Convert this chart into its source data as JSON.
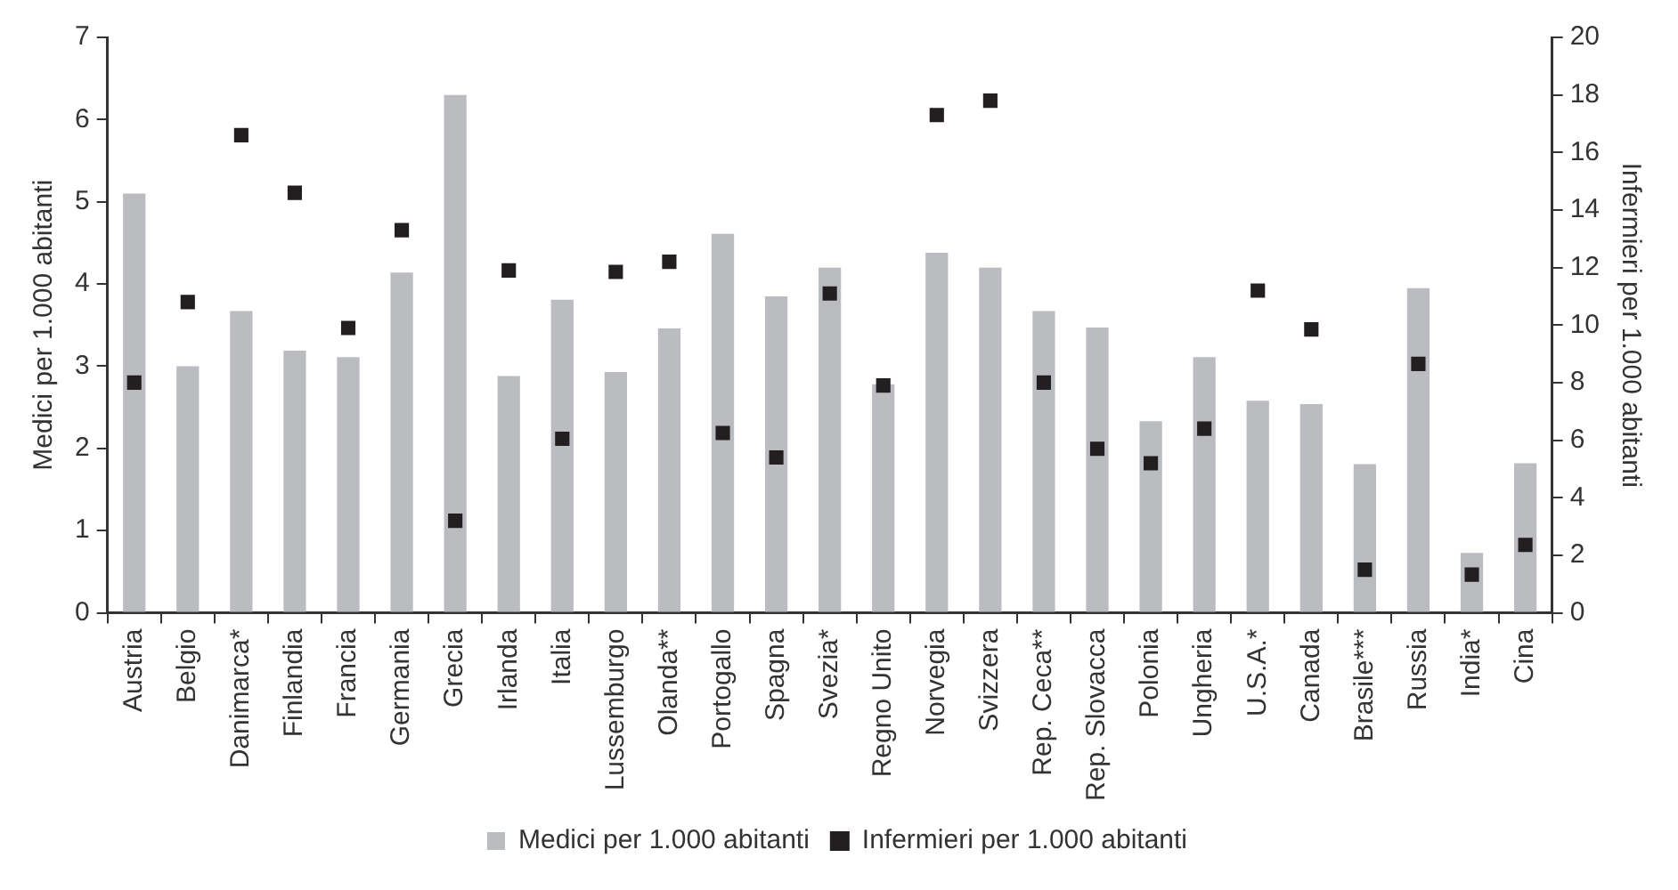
{
  "chart_data": {
    "type": "bar",
    "ylabel": "Medici per 1.000 abitanti",
    "y2label": "Infermieri per 1.000 abitanti",
    "categories": [
      "Austria",
      "Belgio",
      "Danimarca*",
      "Finlandia",
      "Francia",
      "Germania",
      "Grecia",
      "Irlanda",
      "Italia",
      "Lussemburgo",
      "Olanda**",
      "Portogallo",
      "Spagna",
      "Svezia*",
      "Regno Unito",
      "Norvegia",
      "Svizzera",
      "Rep. Ceca**",
      "Rep. Slovacca",
      "Polonia",
      "Ungheria",
      "U.S.A.*",
      "Canada",
      "Brasile***",
      "Russia",
      "India*",
      "Cina"
    ],
    "series": [
      {
        "name": "Medici per 1.000 abitanti",
        "color": "#bbbcc0",
        "values": [
          5.1,
          3.0,
          3.67,
          3.19,
          3.11,
          4.14,
          6.3,
          2.88,
          3.81,
          2.93,
          3.46,
          4.61,
          3.85,
          4.2,
          2.78,
          4.38,
          4.2,
          3.67,
          3.47,
          2.33,
          3.11,
          2.58,
          2.54,
          1.81,
          3.95,
          0.73,
          1.82
        ]
      },
      {
        "name": "Infermieri per 1.000 abitanti",
        "type": "scatter",
        "axis": "y2",
        "color": "#231f20",
        "x": [
          "Austria",
          "Belgio",
          "Danimarca*",
          "Finlandia",
          "Francia",
          "Germania",
          "Grecia",
          "Irlanda",
          "Italia",
          "Lussemburgo",
          "Olanda**",
          "Portogallo",
          "Spagna",
          "Svezia*",
          "Regno Unito",
          "Norvegia",
          "Svizzera",
          "Rep. Ceca**",
          "Rep. Slovacca",
          "Polonia",
          "Ungheria",
          "U.S.A.*",
          "Canada",
          "Brasile***",
          "Russia",
          "India*",
          "Cina"
        ],
        "values": [
          8.0,
          10.8,
          16.6,
          14.6,
          9.9,
          13.3,
          3.2,
          11.9,
          6.05,
          11.85,
          12.2,
          6.25,
          5.4,
          11.1,
          7.9,
          17.3,
          17.8,
          8.0,
          5.7,
          5.2,
          6.4,
          11.2,
          9.85,
          1.5,
          8.65,
          1.33,
          2.36
        ]
      }
    ],
    "ylim": [
      0,
      7
    ],
    "yticks": [
      0,
      1,
      2,
      3,
      4,
      5,
      6,
      7
    ],
    "y2lim": [
      0,
      20
    ],
    "y2ticks": [
      0,
      2,
      4,
      6,
      8,
      10,
      12,
      14,
      16,
      18,
      20
    ],
    "grid": false,
    "legend": "bottom",
    "marker": "square"
  }
}
